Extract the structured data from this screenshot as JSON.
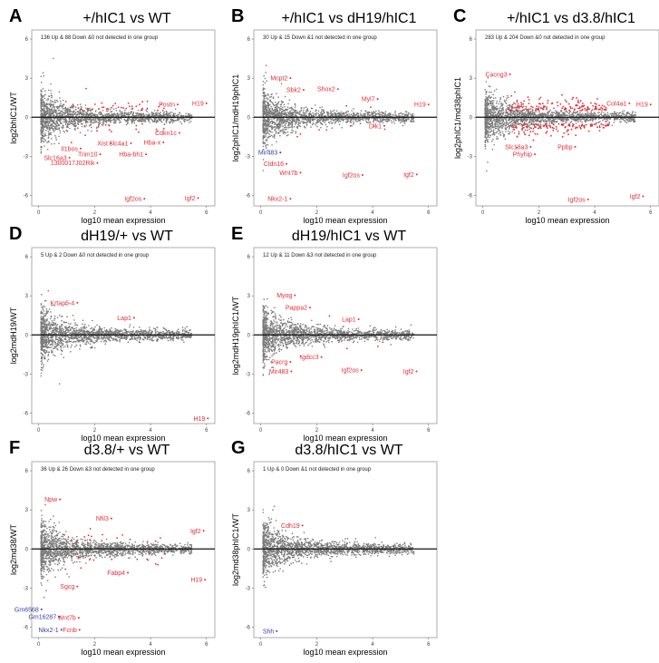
{
  "colors": {
    "points": "#7a7a7a",
    "up_down": "#e0303a",
    "blue_label": "#3b3fa0",
    "zero_line": "#111111",
    "frame": "#999999"
  },
  "chart_data": [
    {
      "type": "scatter",
      "panel": "A",
      "title": "+/hIC1 vs WT",
      "summary": "136 Up & 88 Down &0 not detected in one group",
      "xlabel": "log10 mean expression",
      "ylabel": "log2bhIC1/WT",
      "xlim": [
        -0.25,
        6.3
      ],
      "ylim": [
        -6.8,
        6.7
      ],
      "xticks": [
        0,
        2,
        4,
        6
      ],
      "yticks": [
        -6,
        -3,
        0,
        3,
        6
      ],
      "grid": false,
      "highlight_density": 60,
      "genes": [
        {
          "gene": "Postn",
          "x": 4.97,
          "y": 0.98,
          "color": "red"
        },
        {
          "gene": "H19",
          "x": 6.0,
          "y": 1.07,
          "color": "red"
        },
        {
          "gene": "Cdkn1c",
          "x": 5.03,
          "y": -1.2,
          "color": "red"
        },
        {
          "gene": "Xist",
          "x": 2.57,
          "y": -2.0,
          "color": "red"
        },
        {
          "gene": "Slc4a1",
          "x": 3.3,
          "y": -2.0,
          "color": "red"
        },
        {
          "gene": "Hba-x",
          "x": 4.46,
          "y": -1.93,
          "color": "red"
        },
        {
          "gene": "Hba-bh1",
          "x": 3.84,
          "y": -2.84,
          "color": "red"
        },
        {
          "gene": "Il1bos",
          "x": 1.5,
          "y": -2.4,
          "color": "red"
        },
        {
          "gene": "Trim10",
          "x": 2.2,
          "y": -2.84,
          "color": "red"
        },
        {
          "gene": "Slc16a3",
          "x": 1.1,
          "y": -3.1,
          "color": "red"
        },
        {
          "gene": "1300017J02Rik",
          "x": 2.1,
          "y": -3.5,
          "color": "red"
        },
        {
          "gene": "Igf2os",
          "x": 3.78,
          "y": -6.25,
          "color": "red"
        },
        {
          "gene": "Igf2",
          "x": 5.7,
          "y": -6.2,
          "color": "red"
        }
      ]
    },
    {
      "type": "scatter",
      "panel": "B",
      "title": "+/hIC1 vs dH19/hIC1",
      "summary": "30 Up & 15 Down &1 not detected in one group",
      "xlabel": "log10 mean expression",
      "ylabel": "log2phIC1/mdH19phIC1",
      "xlim": [
        -0.25,
        6.3
      ],
      "ylim": [
        -6.8,
        6.7
      ],
      "xticks": [
        0,
        2,
        4,
        6
      ],
      "yticks": [
        -6,
        -3,
        0,
        3,
        6
      ],
      "grid": false,
      "highlight_density": 8,
      "genes": [
        {
          "gene": "Mcpt2",
          "x": 1.06,
          "y": 3.0,
          "color": "red"
        },
        {
          "gene": "Sbk2",
          "x": 1.53,
          "y": 2.1,
          "color": "red"
        },
        {
          "gene": "Shox2",
          "x": 2.76,
          "y": 2.16,
          "color": "red"
        },
        {
          "gene": "Myl7",
          "x": 4.18,
          "y": 1.4,
          "color": "red"
        },
        {
          "gene": "H19",
          "x": 6.0,
          "y": 0.98,
          "color": "red"
        },
        {
          "gene": "Dlk1",
          "x": 4.42,
          "y": -0.66,
          "color": "red"
        },
        {
          "gene": "Mir483",
          "x": 0.7,
          "y": -2.7,
          "color": "blue"
        },
        {
          "gene": "Cldn16",
          "x": 0.92,
          "y": -3.57,
          "color": "red"
        },
        {
          "gene": "Wnt7b",
          "x": 1.42,
          "y": -4.25,
          "color": "red"
        },
        {
          "gene": "Igf2os",
          "x": 3.64,
          "y": -4.43,
          "color": "red"
        },
        {
          "gene": "Igf2",
          "x": 5.58,
          "y": -4.39,
          "color": "red"
        },
        {
          "gene": "Nkx2-1",
          "x": 1.06,
          "y": -6.25,
          "color": "red"
        }
      ]
    },
    {
      "type": "scatter",
      "panel": "C",
      "title": "+/hIC1 vs d3.8/hIC1",
      "summary": "283 Up & 204 Down &0 not detected in one group",
      "xlabel": "log10 mean expression",
      "ylabel": "log2phIC1/md38phIC1",
      "xlim": [
        -0.25,
        6.3
      ],
      "ylim": [
        -6.8,
        6.7
      ],
      "xticks": [
        0,
        2,
        4,
        6
      ],
      "yticks": [
        -6,
        -3,
        0,
        3,
        6
      ],
      "grid": false,
      "highlight_density": 260,
      "genes": [
        {
          "gene": "Cacng3",
          "x": 0.97,
          "y": 3.3,
          "color": "red"
        },
        {
          "gene": "Col4a1",
          "x": 5.24,
          "y": 1.07,
          "color": "red"
        },
        {
          "gene": "H19",
          "x": 6.0,
          "y": 0.98,
          "color": "red"
        },
        {
          "gene": "Slc18a3",
          "x": 1.71,
          "y": -2.27,
          "color": "red"
        },
        {
          "gene": "Phyhip",
          "x": 1.86,
          "y": -2.84,
          "color": "red"
        },
        {
          "gene": "Ppbp",
          "x": 3.3,
          "y": -2.27,
          "color": "red"
        },
        {
          "gene": "Igf2os",
          "x": 3.76,
          "y": -6.3,
          "color": "red"
        },
        {
          "gene": "Igf2",
          "x": 5.73,
          "y": -6.07,
          "color": "red"
        }
      ]
    },
    {
      "type": "scatter",
      "panel": "D",
      "title": "dH19/+ vs WT",
      "summary": "5 Up & 2 Down &0 not detected in one group",
      "xlabel": "log10 mean expression",
      "ylabel": "log2mdH19/WT",
      "xlim": [
        -0.25,
        6.3
      ],
      "ylim": [
        -6.8,
        6.7
      ],
      "xticks": [
        0,
        2,
        4,
        6
      ],
      "yticks": [
        -6,
        -3,
        0,
        3,
        6
      ],
      "grid": false,
      "highlight_density": 2,
      "genes": [
        {
          "gene": "Krtap5-4",
          "x": 1.38,
          "y": 2.47,
          "color": "red"
        },
        {
          "gene": "Lap1",
          "x": 3.41,
          "y": 1.32,
          "color": "red"
        },
        {
          "gene": "H19",
          "x": 6.05,
          "y": -6.4,
          "color": "red"
        }
      ]
    },
    {
      "type": "scatter",
      "panel": "E",
      "title": "dH19/hIC1 vs WT",
      "summary": "12 Up & 11 Down &3 not detected in one group",
      "xlabel": "log10 mean expression",
      "ylabel": "log2mdH19phIC1/WT",
      "xlim": [
        -0.25,
        6.3
      ],
      "ylim": [
        -6.8,
        6.7
      ],
      "xticks": [
        0,
        2,
        4,
        6
      ],
      "yticks": [
        -6,
        -3,
        0,
        3,
        6
      ],
      "grid": false,
      "highlight_density": 6,
      "genes": [
        {
          "gene": "Myog",
          "x": 1.22,
          "y": 3.05,
          "color": "red"
        },
        {
          "gene": "Pappa2",
          "x": 1.76,
          "y": 2.1,
          "color": "red"
        },
        {
          "gene": "Lap1",
          "x": 3.5,
          "y": 1.2,
          "color": "red"
        },
        {
          "gene": "Igdcc3",
          "x": 2.17,
          "y": -1.7,
          "color": "red"
        },
        {
          "gene": "Pacrg",
          "x": 1.06,
          "y": -2.07,
          "color": "red"
        },
        {
          "gene": "Mir483",
          "x": 1.09,
          "y": -2.8,
          "color": "red"
        },
        {
          "gene": "Igf2os",
          "x": 3.6,
          "y": -2.7,
          "color": "red"
        },
        {
          "gene": "Igf2",
          "x": 5.57,
          "y": -2.8,
          "color": "red"
        }
      ]
    },
    {
      "type": "scatter",
      "panel": "F",
      "title": "d3.8/+ vs WT",
      "summary": "36 Up & 26 Down &3 not detected in one group",
      "xlabel": "log10 mean expression",
      "ylabel": "log2md38/WT",
      "xlim": [
        -0.25,
        6.3
      ],
      "ylim": [
        -6.8,
        6.7
      ],
      "xticks": [
        0,
        2,
        4,
        6
      ],
      "yticks": [
        -6,
        -3,
        0,
        3,
        6
      ],
      "grid": false,
      "highlight_density": 30,
      "genes": [
        {
          "gene": "Npw",
          "x": 0.76,
          "y": 3.8,
          "color": "red"
        },
        {
          "gene": "Nfil3",
          "x": 2.6,
          "y": 2.34,
          "color": "red"
        },
        {
          "gene": "Igf2",
          "x": 5.9,
          "y": 1.39,
          "color": "red"
        },
        {
          "gene": "Fabp4",
          "x": 3.19,
          "y": -1.82,
          "color": "red"
        },
        {
          "gene": "H19",
          "x": 5.95,
          "y": -2.36,
          "color": "red"
        },
        {
          "gene": "Sgcg",
          "x": 1.38,
          "y": -2.88,
          "color": "red"
        },
        {
          "gene": "Gm6568",
          "x": 0.1,
          "y": -4.63,
          "color": "blue"
        },
        {
          "gene": "Gm16287",
          "x": 0.73,
          "y": -5.2,
          "color": "blue"
        },
        {
          "gene": "Wnt7b",
          "x": 1.43,
          "y": -5.28,
          "color": "red"
        },
        {
          "gene": "Nkx2-1",
          "x": 0.81,
          "y": -6.2,
          "color": "blue"
        },
        {
          "gene": "Fcnb",
          "x": 1.46,
          "y": -6.2,
          "color": "red"
        }
      ]
    },
    {
      "type": "scatter",
      "panel": "G",
      "title": "d3.8/hIC1 vs WT",
      "summary": "1 Up & 0 Down &1 not detected in one group",
      "xlabel": "log10 mean expression",
      "ylabel": "log2md38phIC1/WT",
      "xlim": [
        -0.25,
        6.3
      ],
      "ylim": [
        -6.8,
        6.7
      ],
      "xticks": [
        0,
        2,
        4,
        6
      ],
      "yticks": [
        -6,
        -3,
        0,
        3,
        6
      ],
      "grid": false,
      "highlight_density": 0,
      "genes": [
        {
          "gene": "Cdh19",
          "x": 1.49,
          "y": 1.8,
          "color": "red"
        },
        {
          "gene": "Shh",
          "x": 0.57,
          "y": -6.3,
          "color": "blue"
        }
      ]
    }
  ]
}
